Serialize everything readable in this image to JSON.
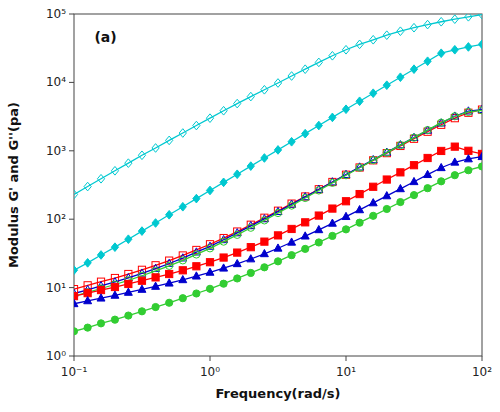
{
  "chart_data": {
    "type": "line",
    "annotation": "(a)",
    "x_label": "Frequency(rad/s)",
    "y_label": "Modulus G' and G''(pa)",
    "log": true,
    "grid": false,
    "xlim": [
      0.1,
      100
    ],
    "ylim": [
      1,
      100000
    ],
    "xticks": [
      {
        "value": 0.1,
        "label": "10⁻¹"
      },
      {
        "value": 1,
        "label": "10⁰"
      },
      {
        "value": 10,
        "label": "10¹"
      },
      {
        "value": 100,
        "label": "10²"
      }
    ],
    "yticks": [
      {
        "value": 1,
        "label": "10⁰"
      },
      {
        "value": 10,
        "label": "10¹"
      },
      {
        "value": 100,
        "label": "10²"
      },
      {
        "value": 1000,
        "label": "10³"
      },
      {
        "value": 10000,
        "label": "10⁴"
      },
      {
        "value": 100000,
        "label": "10⁵"
      }
    ],
    "x": [
      0.1,
      0.126,
      0.158,
      0.2,
      0.251,
      0.316,
      0.398,
      0.501,
      0.631,
      0.794,
      1.0,
      1.259,
      1.585,
      1.995,
      2.512,
      3.162,
      3.981,
      5.012,
      6.31,
      7.943,
      10.0,
      12.59,
      15.85,
      19.95,
      25.12,
      31.62,
      39.81,
      50.12,
      63.1,
      79.43,
      100.0
    ],
    "series": [
      {
        "color": "#00C8D0",
        "marker": "diamond-open",
        "values": [
          230,
          300,
          390,
          510,
          660,
          860,
          1100,
          1420,
          1820,
          2340,
          3000,
          3850,
          4900,
          6200,
          7800,
          9800,
          12400,
          15600,
          19600,
          24500,
          30000,
          36000,
          42000,
          49000,
          56000,
          63000,
          70000,
          77000,
          84000,
          91000,
          98000
        ]
      },
      {
        "color": "#00C8D0",
        "marker": "diamond",
        "values": [
          18,
          23,
          30,
          39,
          51,
          67,
          88,
          116,
          152,
          200,
          263,
          346,
          454,
          597,
          785,
          1030,
          1355,
          1780,
          2340,
          3080,
          4050,
          5300,
          6950,
          9100,
          11900,
          15600,
          20400,
          26700,
          30000,
          33000,
          36000
        ]
      },
      {
        "color": "#FF0000",
        "marker": "square-open",
        "values": [
          9.5,
          10.8,
          12.2,
          13.8,
          15.8,
          18.2,
          21.2,
          24.8,
          29.5,
          35.5,
          43,
          53,
          66,
          83,
          105,
          133,
          169,
          215,
          274,
          350,
          447,
          570,
          726,
          925,
          1178,
          1500,
          1900,
          2400,
          3000,
          3600,
          4000
        ]
      },
      {
        "color": "#0000CD",
        "marker": "triangle-open",
        "values": [
          8.2,
          9.3,
          10.6,
          12.1,
          13.9,
          16.2,
          19.0,
          22.5,
          27,
          33,
          40,
          50,
          63,
          80,
          101,
          129,
          165,
          212,
          272,
          350,
          449,
          577,
          740,
          950,
          1220,
          1560,
          1990,
          2540,
          3200,
          3800,
          4000
        ]
      },
      {
        "color": "#32CD32",
        "marker": "circle-open",
        "values": [
          7.5,
          8.5,
          9.7,
          11.1,
          12.8,
          14.9,
          17.5,
          20.8,
          25,
          30.5,
          37.5,
          47,
          59,
          75,
          96,
          123,
          158,
          204,
          263,
          340,
          439,
          566,
          730,
          940,
          1210,
          1560,
          2010,
          2580,
          3200,
          3700,
          3900
        ]
      },
      {
        "color": "#FF0000",
        "marker": "square",
        "values": [
          7.5,
          8.3,
          9.2,
          10.2,
          11.3,
          12.6,
          14.1,
          15.8,
          17.9,
          20.5,
          23.5,
          27.5,
          32.5,
          39,
          47,
          58,
          72,
          90,
          113,
          143,
          183,
          233,
          298,
          380,
          484,
          616,
          785,
          995,
          1150,
          1000,
          900
        ]
      },
      {
        "color": "#0000CD",
        "marker": "triangle",
        "values": [
          5.8,
          6.4,
          7.0,
          7.7,
          8.5,
          9.4,
          10.4,
          11.6,
          13.0,
          14.7,
          16.7,
          19.2,
          22.3,
          26.2,
          31.2,
          37.6,
          46,
          56.5,
          70,
          87,
          109,
          137,
          173,
          219,
          278,
          353,
          448,
          565,
          680,
          760,
          820
        ]
      },
      {
        "color": "#32CD32",
        "marker": "circle",
        "values": [
          2.3,
          2.6,
          3.0,
          3.4,
          3.9,
          4.5,
          5.2,
          6.0,
          7.0,
          8.2,
          9.6,
          11.4,
          13.6,
          16.4,
          19.8,
          24.2,
          29.8,
          36.8,
          45.7,
          57,
          71,
          89,
          112,
          141,
          178,
          225,
          284,
          358,
          440,
          520,
          590
        ]
      }
    ]
  }
}
